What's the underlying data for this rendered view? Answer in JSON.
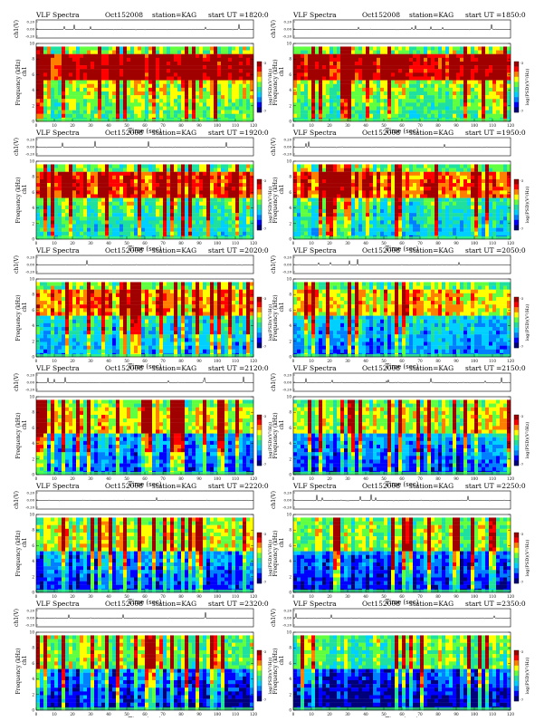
{
  "page": {
    "header": {
      "title": "VLF Spectra",
      "date": "Oct152008",
      "station": "station=KAG",
      "start_prefix": "start UT ="
    },
    "axis_labels": {
      "amplitude": "ch1(V)",
      "channel": "ch1",
      "frequency": "Frequency (kHz)",
      "time": "Time (sec)",
      "colorbar": "log(PSD)(V²/Hz)"
    }
  },
  "chart_data": [
    {
      "type": "heatmap",
      "start_ut": "1820:0",
      "x": [
        0,
        120
      ],
      "y": [
        0,
        10
      ]
    },
    {
      "type": "heatmap",
      "start_ut": "1850:0",
      "x": [
        0,
        120
      ],
      "y": [
        0,
        10
      ]
    },
    {
      "type": "heatmap",
      "start_ut": "1920:0",
      "x": [
        0,
        120
      ],
      "y": [
        0,
        10
      ]
    },
    {
      "type": "heatmap",
      "start_ut": "1950:0",
      "x": [
        0,
        120
      ],
      "y": [
        0,
        10
      ]
    },
    {
      "type": "heatmap",
      "start_ut": "2020:0",
      "x": [
        0,
        120
      ],
      "y": [
        0,
        10
      ]
    },
    {
      "type": "heatmap",
      "start_ut": "2050:0",
      "x": [
        0,
        120
      ],
      "y": [
        0,
        10
      ]
    },
    {
      "type": "heatmap",
      "start_ut": "2120:0",
      "x": [
        0,
        120
      ],
      "y": [
        0,
        10
      ]
    },
    {
      "type": "heatmap",
      "start_ut": "2150:0",
      "x": [
        0,
        120
      ],
      "y": [
        0,
        10
      ]
    },
    {
      "type": "heatmap",
      "start_ut": "2220:0",
      "x": [
        0,
        120
      ],
      "y": [
        0,
        10
      ]
    },
    {
      "type": "heatmap",
      "start_ut": "2250:0",
      "x": [
        0,
        120
      ],
      "y": [
        0,
        10
      ]
    },
    {
      "type": "heatmap",
      "start_ut": "2320:0",
      "x": [
        0,
        120
      ],
      "y": [
        0,
        10
      ]
    },
    {
      "type": "heatmap",
      "start_ut": "2350:0",
      "x": [
        0,
        120
      ],
      "y": [
        0,
        10
      ]
    }
  ],
  "common_axes": {
    "time_ticks": [
      "0",
      "10",
      "20",
      "30",
      "40",
      "50",
      "60",
      "70",
      "80",
      "90",
      "100",
      "110",
      "120"
    ],
    "freq_ticks": [
      "0",
      "2",
      "4",
      "6",
      "8",
      "10"
    ],
    "amp_ticks": [
      "0.20",
      "0.00",
      "-0.20"
    ],
    "colorbar_ticks": [
      "-3",
      "-7"
    ]
  },
  "colors": {
    "colormap": [
      "#00007a",
      "#0000ff",
      "#0080ff",
      "#00d0ff",
      "#20e0a0",
      "#60ff40",
      "#ffff00",
      "#ff8000",
      "#ff0000",
      "#a00000"
    ]
  }
}
